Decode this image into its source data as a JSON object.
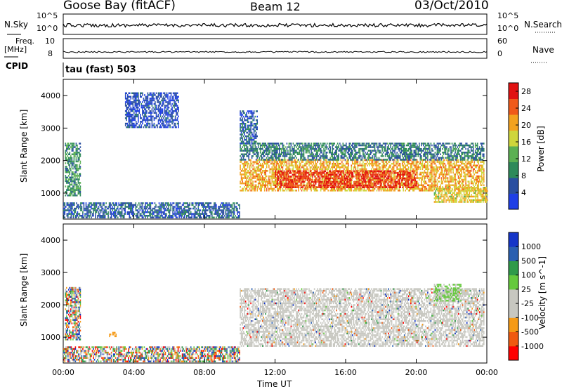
{
  "header": {
    "station": "Goose Bay (fitACF)",
    "beam": "Beam 12",
    "date": "03/Oct/2010"
  },
  "small_panels": {
    "nsky_label": "N.Sky",
    "nsearch_label": "N.Search",
    "noise_ticks": [
      "10^5",
      "10^0"
    ],
    "freq_label_1": "Freq.",
    "freq_label_2": "[MHz]",
    "freq_ticks": [
      "10",
      "8"
    ],
    "nave_label": "Nave",
    "nave_ticks": [
      "60",
      "0"
    ],
    "cpid_label": "CPID",
    "cpid_value": "tau (fast) 503"
  },
  "colors": {
    "power_scale": [
      "#1f3fe6",
      "#2a4fa0",
      "#2e8a5a",
      "#5bb053",
      "#cfd63c",
      "#f3a21f",
      "#f05a1a",
      "#e11212"
    ],
    "velocity_scale": [
      "#ff0000",
      "#f05a10",
      "#f59a16",
      "#c7c7c0",
      "#c7c7c0",
      "#65c93d",
      "#2f9a4a",
      "#2a5fb0",
      "#1535c8"
    ]
  },
  "chart_data": [
    {
      "type": "heatmap",
      "name": "power",
      "xlabel": "Time UT",
      "ylabel": "Slant Range [km]",
      "xlim": [
        0,
        24
      ],
      "ylim": [
        200,
        4500
      ],
      "x_ticks": [
        "00:00",
        "04:00",
        "08:00",
        "12:00",
        "16:00",
        "20:00",
        "00:00"
      ],
      "x_tick_values": [
        0,
        4,
        8,
        12,
        16,
        20,
        24
      ],
      "y_ticks": [
        "1000",
        "2000",
        "3000",
        "4000"
      ],
      "y_tick_values": [
        1000,
        2000,
        3000,
        4000
      ],
      "colorbar_label": "Power [dB]",
      "colorbar_ticks": [
        "4",
        "8",
        "12",
        "16",
        "20",
        "24",
        "28"
      ],
      "colorbar_tick_values": [
        4,
        8,
        12,
        16,
        20,
        24,
        28
      ],
      "colorbar_range": [
        0,
        30
      ],
      "regions": [
        {
          "t": [
            0.1,
            1.0
          ],
          "r": [
            900,
            2500
          ],
          "level": 10
        },
        {
          "t": [
            0,
            10.0
          ],
          "r": [
            220,
            700
          ],
          "level": 6
        },
        {
          "t": [
            10.0,
            23.8
          ],
          "r": [
            1050,
            2000
          ],
          "level": 20
        },
        {
          "t": [
            12.0,
            20.0
          ],
          "r": [
            1150,
            1650
          ],
          "level": 27
        },
        {
          "t": [
            10.0,
            23.8
          ],
          "r": [
            2000,
            2500
          ],
          "level": 8
        },
        {
          "t": [
            21.0,
            24.0
          ],
          "r": [
            700,
            1150
          ],
          "level": 18
        },
        {
          "t": [
            10.0,
            11.0
          ],
          "r": [
            2500,
            3500
          ],
          "level": 6
        },
        {
          "t": [
            3.5,
            6.5
          ],
          "r": [
            3000,
            4100
          ],
          "level": 4
        }
      ]
    },
    {
      "type": "heatmap",
      "name": "velocity",
      "xlabel": "Time UT",
      "ylabel": "Slant Range [km]",
      "xlim": [
        0,
        24
      ],
      "ylim": [
        200,
        4500
      ],
      "x_ticks": [
        "00:00",
        "04:00",
        "08:00",
        "12:00",
        "16:00",
        "20:00",
        "00:00"
      ],
      "x_tick_values": [
        0,
        4,
        8,
        12,
        16,
        20,
        24
      ],
      "y_ticks": [
        "1000",
        "2000",
        "3000",
        "4000"
      ],
      "y_tick_values": [
        1000,
        2000,
        3000,
        4000
      ],
      "colorbar_label": "Velocity [m s^-1]",
      "colorbar_ticks": [
        "1000",
        "500",
        "100",
        "25",
        "-25",
        "-100",
        "-500",
        "-1000"
      ],
      "regions": [
        {
          "t": [
            0.1,
            1.0
          ],
          "r": [
            900,
            2500
          ],
          "level": "mixed"
        },
        {
          "t": [
            0,
            10.0
          ],
          "r": [
            220,
            700
          ],
          "level": "mixed"
        },
        {
          "t": [
            10.0,
            23.8
          ],
          "r": [
            700,
            2500
          ],
          "level": "ground"
        },
        {
          "t": [
            21.0,
            22.5
          ],
          "r": [
            2100,
            2600
          ],
          "level": "positive"
        },
        {
          "t": [
            2.6,
            3.0
          ],
          "r": [
            1000,
            1150
          ],
          "level": "negative"
        }
      ]
    }
  ]
}
